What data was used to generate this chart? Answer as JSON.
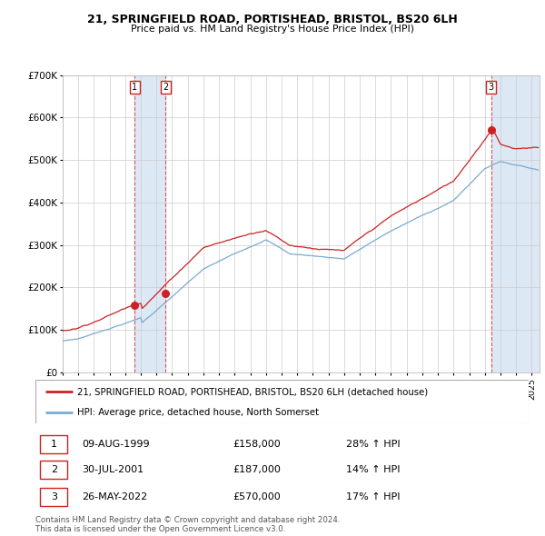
{
  "title": "21, SPRINGFIELD ROAD, PORTISHEAD, BRISTOL, BS20 6LH",
  "subtitle": "Price paid vs. HM Land Registry's House Price Index (HPI)",
  "legend_line1": "21, SPRINGFIELD ROAD, PORTISHEAD, BRISTOL, BS20 6LH (detached house)",
  "legend_line2": "HPI: Average price, detached house, North Somerset",
  "footer1": "Contains HM Land Registry data © Crown copyright and database right 2024.",
  "footer2": "This data is licensed under the Open Government Licence v3.0.",
  "transactions": [
    {
      "num": 1,
      "date": "09-AUG-1999",
      "price": 158000,
      "pct": "28%",
      "year": 1999.608
    },
    {
      "num": 2,
      "date": "30-JUL-2001",
      "price": 187000,
      "pct": "14%",
      "year": 2001.581
    },
    {
      "num": 3,
      "date": "26-MAY-2022",
      "price": 570000,
      "pct": "17%",
      "year": 2022.397
    }
  ],
  "hpi_color": "#7aaad0",
  "price_color": "#cc2222",
  "dot_color": "#cc2222",
  "bg_color": "#ffffff",
  "grid_color": "#cccccc",
  "shade_color": "#dde8f5",
  "dashed_color": "#dd4444",
  "ylim": [
    0,
    700000
  ],
  "xlim_start": 1995.0,
  "xlim_end": 2025.5,
  "yticks": [
    0,
    100000,
    200000,
    300000,
    400000,
    500000,
    600000,
    700000
  ],
  "ytick_labels": [
    "£0",
    "£100K",
    "£200K",
    "£300K",
    "£400K",
    "£500K",
    "£600K",
    "£700K"
  ],
  "xticks": [
    1995,
    1996,
    1997,
    1998,
    1999,
    2000,
    2001,
    2002,
    2003,
    2004,
    2005,
    2006,
    2007,
    2008,
    2009,
    2010,
    2011,
    2012,
    2013,
    2014,
    2015,
    2016,
    2017,
    2018,
    2019,
    2020,
    2021,
    2022,
    2023,
    2024,
    2025
  ]
}
